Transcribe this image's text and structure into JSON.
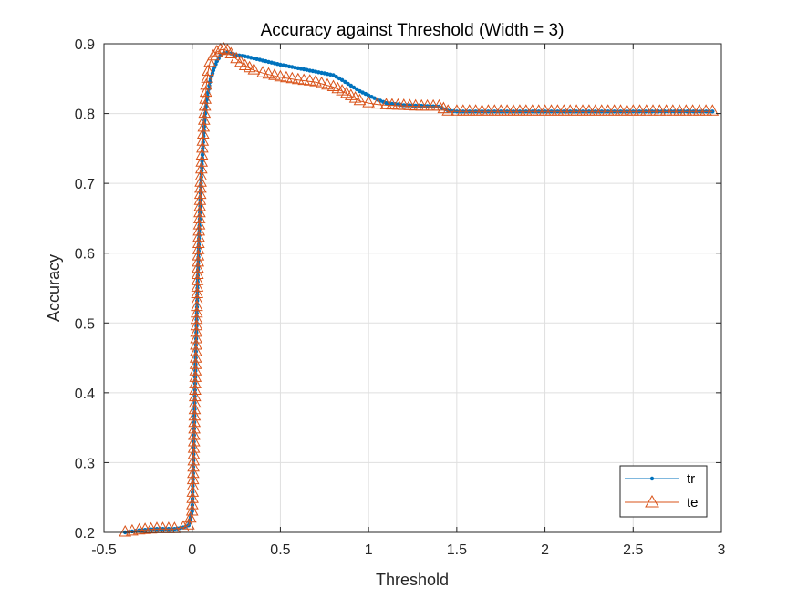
{
  "chart_data": {
    "type": "line",
    "title": "Accuracy against Threshold (Width = 3)",
    "xlabel": "Threshold",
    "ylabel": "Accuracy",
    "xlim": [
      -0.5,
      3
    ],
    "ylim": [
      0.2,
      0.9
    ],
    "xticks": [
      -0.5,
      0,
      0.5,
      1,
      1.5,
      2,
      2.5,
      3
    ],
    "xtick_labels": [
      "-0.5",
      "0",
      "0.5",
      "1",
      "1.5",
      "2",
      "2.5",
      "3"
    ],
    "yticks": [
      0.2,
      0.3,
      0.4,
      0.5,
      0.6,
      0.7,
      0.8,
      0.9
    ],
    "ytick_labels": [
      "0.2",
      "0.3",
      "0.4",
      "0.5",
      "0.6",
      "0.7",
      "0.8",
      "0.9"
    ],
    "grid": true,
    "legend_position": "bottom-right",
    "series": [
      {
        "name": "tr",
        "color": "#0072BD",
        "marker": "dot",
        "x": [
          -0.38,
          -0.3,
          -0.2,
          -0.1,
          -0.05,
          -0.02,
          0.0,
          0.01,
          0.02,
          0.03,
          0.04,
          0.05,
          0.06,
          0.07,
          0.08,
          0.09,
          0.1,
          0.12,
          0.14,
          0.16,
          0.18,
          0.2,
          0.22,
          0.25,
          0.3,
          0.35,
          0.4,
          0.5,
          0.6,
          0.7,
          0.8,
          0.85,
          0.9,
          0.95,
          1.0,
          1.05,
          1.1,
          1.2,
          1.3,
          1.4,
          1.45,
          1.5,
          2.0,
          2.5,
          2.95
        ],
        "y": [
          0.2,
          0.203,
          0.205,
          0.205,
          0.207,
          0.21,
          0.23,
          0.33,
          0.45,
          0.55,
          0.63,
          0.7,
          0.75,
          0.79,
          0.815,
          0.83,
          0.845,
          0.862,
          0.875,
          0.883,
          0.887,
          0.888,
          0.886,
          0.884,
          0.882,
          0.879,
          0.876,
          0.87,
          0.865,
          0.86,
          0.855,
          0.848,
          0.84,
          0.832,
          0.826,
          0.82,
          0.815,
          0.812,
          0.811,
          0.81,
          0.804,
          0.803,
          0.803,
          0.803,
          0.803
        ]
      },
      {
        "name": "te",
        "color": "#D95319",
        "marker": "triangle",
        "x": [
          -0.38,
          -0.3,
          -0.2,
          -0.1,
          -0.05,
          -0.02,
          0.0,
          0.01,
          0.02,
          0.03,
          0.04,
          0.05,
          0.06,
          0.07,
          0.08,
          0.09,
          0.1,
          0.12,
          0.14,
          0.16,
          0.18,
          0.2,
          0.22,
          0.25,
          0.3,
          0.35,
          0.4,
          0.5,
          0.6,
          0.7,
          0.8,
          0.85,
          0.9,
          0.95,
          1.0,
          1.05,
          1.1,
          1.2,
          1.3,
          1.4,
          1.45,
          1.5,
          2.0,
          2.5,
          2.95
        ],
        "y": [
          0.2,
          0.203,
          0.205,
          0.205,
          0.207,
          0.21,
          0.23,
          0.32,
          0.44,
          0.56,
          0.64,
          0.71,
          0.76,
          0.8,
          0.84,
          0.86,
          0.873,
          0.882,
          0.888,
          0.891,
          0.892,
          0.89,
          0.885,
          0.878,
          0.868,
          0.862,
          0.858,
          0.852,
          0.848,
          0.845,
          0.838,
          0.832,
          0.825,
          0.818,
          0.815,
          0.813,
          0.812,
          0.811,
          0.81,
          0.81,
          0.803,
          0.803,
          0.803,
          0.803,
          0.803
        ]
      }
    ]
  }
}
